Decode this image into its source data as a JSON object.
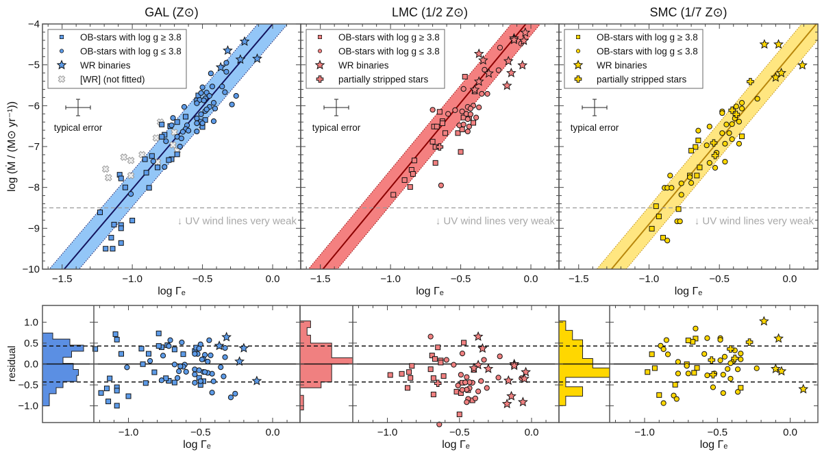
{
  "chart_data": {
    "type": "scatter",
    "ylabel": "log (Ṁ / (M⊙ yr⁻¹))",
    "xlabel": "log Γₑ",
    "residual_label": "residual",
    "typical_error_label": "typical error",
    "uv_limit": {
      "value": -8.5,
      "label": "↓ UV wind lines very weak"
    },
    "xlim": [
      -1.64,
      0.2
    ],
    "ylim": [
      -10,
      -4
    ],
    "xticks": [
      -1.5,
      -1.0,
      -0.5,
      0.0
    ],
    "xtick_labels": [
      "−1.5",
      "−1.0",
      "−0.5",
      "0.0"
    ],
    "yticks": [
      -4,
      -5,
      -6,
      -7,
      -8,
      -9,
      -10
    ],
    "ytick_labels": [
      "−4",
      "−5",
      "−6",
      "−7",
      "−8",
      "−9",
      "−10"
    ],
    "residual_ylim": [
      -1.4,
      1.4
    ],
    "residual_xlim": [
      -1.24,
      0.19
    ],
    "residual_xticks": [
      -1.0,
      -0.5,
      0.0
    ],
    "residual_xtick_labels": [
      "−1.0",
      "−0.5",
      "0.0"
    ],
    "residual_yticks": [
      1.0,
      0.5,
      0.0,
      -0.5,
      -1.0
    ],
    "residual_ytick_labels": [
      "1.0",
      "0.5",
      "0.0",
      "−0.5",
      "−1.0"
    ],
    "hist_xlim": [
      0,
      15
    ],
    "panels": [
      {
        "title": "GAL (Z⊙)",
        "colors": {
          "band": "#93c6f7",
          "line": "#14145e",
          "marker": "#5d9be8",
          "hist": "#5b8fe3"
        },
        "fit": {
          "slope": 4.04,
          "intercept": -4.0,
          "sigma": 0.43
        },
        "legend": [
          "OB-stars with log g ≥ 3.8",
          "OB-stars with log g ≤ 3.8",
          "WR binaries",
          "[WR] (not fitted)"
        ],
        "legend_markers": [
          "square",
          "circle",
          "star",
          "xcross"
        ],
        "series": {
          "square": [
            [
              -0.62,
              -6.27
            ],
            [
              -0.79,
              -6.46
            ],
            [
              -0.73,
              -6.5
            ],
            [
              -0.68,
              -6.4
            ],
            [
              -0.77,
              -6.71
            ],
            [
              -0.79,
              -6.76
            ],
            [
              -0.68,
              -7.19
            ],
            [
              -0.72,
              -7.31
            ],
            [
              -0.74,
              -7.33
            ],
            [
              -0.86,
              -7.23
            ],
            [
              -0.91,
              -7.31
            ],
            [
              -0.82,
              -7.51
            ],
            [
              -0.9,
              -7.64
            ],
            [
              -1.09,
              -7.69
            ],
            [
              -1.08,
              -7.78
            ],
            [
              -1.05,
              -8.0
            ],
            [
              -0.88,
              -8.01
            ],
            [
              -1.23,
              -8.61
            ],
            [
              -1.0,
              -8.81
            ],
            [
              -1.13,
              -8.91
            ],
            [
              -1.08,
              -8.92
            ],
            [
              -1.08,
              -9.0
            ],
            [
              -1.15,
              -9.23
            ],
            [
              -1.08,
              -9.36
            ],
            [
              -1.19,
              -9.5
            ],
            [
              -1.14,
              -9.5
            ],
            [
              -0.54,
              -5.87
            ],
            [
              -0.51,
              -6.39
            ],
            [
              -0.48,
              -6.35
            ],
            [
              -0.5,
              -6.52
            ],
            [
              -0.53,
              -5.75
            ]
          ],
          "circle": [
            [
              -0.44,
              -5.21
            ],
            [
              -0.33,
              -4.95
            ],
            [
              -0.33,
              -5.17
            ],
            [
              -0.5,
              -5.55
            ],
            [
              -0.43,
              -5.53
            ],
            [
              -0.36,
              -5.53
            ],
            [
              -0.34,
              -5.67
            ],
            [
              -0.26,
              -5.76
            ],
            [
              -0.29,
              -5.97
            ],
            [
              -0.51,
              -5.69
            ],
            [
              -0.47,
              -5.68
            ],
            [
              -0.45,
              -5.76
            ],
            [
              -0.48,
              -5.82
            ],
            [
              -0.52,
              -5.86
            ],
            [
              -0.49,
              -5.87
            ],
            [
              -0.42,
              -5.93
            ],
            [
              -0.45,
              -6.03
            ],
            [
              -0.41,
              -6.07
            ],
            [
              -0.48,
              -6.13
            ],
            [
              -0.47,
              -6.09
            ],
            [
              -0.54,
              -5.94
            ],
            [
              -0.54,
              -6.31
            ],
            [
              -0.54,
              -6.43
            ],
            [
              -0.5,
              -6.43
            ],
            [
              -0.54,
              -6.63
            ],
            [
              -0.42,
              -6.38
            ],
            [
              -0.51,
              -6.21
            ],
            [
              -0.63,
              -6.03
            ],
            [
              -0.71,
              -6.3
            ],
            [
              -0.72,
              -6.48
            ],
            [
              -0.61,
              -6.48
            ],
            [
              -0.62,
              -6.57
            ],
            [
              -0.6,
              -6.61
            ],
            [
              -0.64,
              -6.64
            ],
            [
              -0.68,
              -6.76
            ],
            [
              -0.65,
              -6.8
            ],
            [
              -0.76,
              -6.87
            ],
            [
              -0.66,
              -7.0
            ],
            [
              -0.85,
              -7.36
            ],
            [
              -0.77,
              -7.5
            ],
            [
              -1.01,
              -8.16
            ]
          ],
          "star": [
            [
              -0.2,
              -4.43
            ],
            [
              -0.32,
              -4.65
            ],
            [
              -0.23,
              -4.87
            ],
            [
              -0.11,
              -4.85
            ],
            [
              -0.37,
              -5.06
            ]
          ],
          "xcross": [
            [
              -0.8,
              -6.4
            ],
            [
              -0.83,
              -6.79
            ],
            [
              -0.7,
              -6.65
            ],
            [
              -0.71,
              -6.96
            ],
            [
              -0.68,
              -7.1
            ],
            [
              -0.93,
              -7.2
            ],
            [
              -1.06,
              -7.26
            ],
            [
              -1.01,
              -7.34
            ],
            [
              -0.82,
              -7.38
            ],
            [
              -1.01,
              -7.71
            ],
            [
              -1.19,
              -7.55
            ],
            [
              -1.17,
              -7.76
            ]
          ]
        },
        "hist": {
          "edges": [
            0.74,
            0.595,
            0.45,
            0.305,
            0.16,
            0.015,
            -0.13,
            -0.275,
            -0.42,
            -0.565,
            -0.71,
            -0.855,
            -1.0
          ],
          "counts": [
            3,
            8,
            12,
            8.5,
            6,
            9,
            10.5,
            10,
            6,
            4,
            2,
            2
          ]
        }
      },
      {
        "title": "LMC (1/2 Z⊙)",
        "colors": {
          "band": "#f48080",
          "line": "#8b0000",
          "marker": "#f08080",
          "hist": "#f08080"
        },
        "fit": {
          "slope": 4.15,
          "intercept": -3.85,
          "sigma": 0.43
        },
        "legend": [
          "OB-stars with log g ≥ 3.8",
          "OB-stars with log g ≤ 3.8",
          "WR binaries",
          "partially stripped stars"
        ],
        "legend_markers": [
          "square",
          "circle",
          "star",
          "plus"
        ],
        "series": {
          "square": [
            [
              -0.47,
              -5.29
            ],
            [
              -0.65,
              -6.15
            ],
            [
              -0.63,
              -6.38
            ],
            [
              -0.63,
              -6.43
            ],
            [
              -0.69,
              -6.51
            ],
            [
              -0.67,
              -6.51
            ],
            [
              -0.61,
              -6.67
            ],
            [
              -0.52,
              -6.67
            ],
            [
              -0.49,
              -6.58
            ],
            [
              -0.48,
              -6.29
            ],
            [
              -0.44,
              -6.3
            ],
            [
              -0.41,
              -6.42
            ],
            [
              -0.4,
              -5.65
            ],
            [
              -0.7,
              -6.88
            ],
            [
              -0.68,
              -7.01
            ],
            [
              -0.5,
              -7.13
            ],
            [
              -0.68,
              -7.4
            ],
            [
              -0.83,
              -7.34
            ],
            [
              -0.85,
              -7.57
            ],
            [
              -0.84,
              -7.67
            ],
            [
              -0.9,
              -7.82
            ],
            [
              -0.86,
              -7.99
            ],
            [
              -0.98,
              -8.18
            ]
          ],
          "circle": [
            [
              -0.22,
              -4.58
            ],
            [
              -0.07,
              -4.48
            ],
            [
              -0.33,
              -5.12
            ],
            [
              -0.23,
              -5.13
            ],
            [
              -0.48,
              -5.59
            ],
            [
              -0.35,
              -5.71
            ],
            [
              -0.31,
              -5.71
            ],
            [
              -0.45,
              -6.03
            ],
            [
              -0.41,
              -6.0
            ],
            [
              -0.37,
              -6.04
            ],
            [
              -0.43,
              -6.07
            ],
            [
              -0.7,
              -6.1
            ],
            [
              -0.59,
              -6.2
            ],
            [
              -0.54,
              -6.11
            ],
            [
              -0.49,
              -6.14
            ],
            [
              -0.46,
              -6.2
            ],
            [
              -0.43,
              -6.21
            ],
            [
              -0.45,
              -6.33
            ],
            [
              -0.39,
              -6.29
            ],
            [
              -0.51,
              -6.48
            ],
            [
              -0.48,
              -6.46
            ],
            [
              -0.44,
              -6.51
            ],
            [
              -0.45,
              -6.63
            ],
            [
              -0.64,
              -7.95
            ]
          ],
          "star": [
            [
              -0.04,
              -4.21
            ],
            [
              -0.12,
              -4.35
            ],
            [
              -0.12,
              -4.39
            ],
            [
              -0.05,
              -4.41
            ],
            [
              -0.37,
              -4.73
            ],
            [
              -0.34,
              -4.89
            ],
            [
              -0.16,
              -4.91
            ],
            [
              -0.06,
              -5.01
            ],
            [
              -0.3,
              -5.21
            ],
            [
              -0.14,
              -5.2
            ],
            [
              -0.37,
              -5.41
            ],
            [
              -0.4,
              -5.61
            ],
            [
              -0.17,
              -5.51
            ]
          ],
          "plus": [
            [
              -0.65,
              -7.01
            ]
          ]
        },
        "hist": {
          "edges": [
            1.03,
            0.87,
            0.69,
            0.5,
            0.15,
            0.0,
            -0.43,
            -0.57,
            -0.75,
            -1.1
          ],
          "counts": [
            3,
            2,
            3,
            9,
            15,
            9,
            6,
            0,
            1
          ]
        }
      },
      {
        "title": "SMC (1/7 Z⊙)",
        "colors": {
          "band": "#ffe680",
          "line": "#b8860b",
          "marker": "#ffd700",
          "hist": "#ffd700"
        },
        "fit": {
          "slope": 4.12,
          "intercept": -4.78,
          "sigma": 0.43
        },
        "legend": [
          "OB-stars with log g ≥ 3.8",
          "OB-stars with log g ≤ 3.8",
          "WR binaries",
          "partially stripped stars"
        ],
        "legend_markers": [
          "square",
          "circle",
          "star",
          "plus"
        ],
        "series": {
          "square": [
            [
              -0.34,
              -6.75
            ],
            [
              -0.65,
              -6.85
            ],
            [
              -0.67,
              -7.01
            ],
            [
              -0.7,
              -7.1
            ],
            [
              -0.64,
              -7.51
            ],
            [
              -0.66,
              -7.71
            ],
            [
              -0.71,
              -7.71
            ],
            [
              -0.95,
              -8.46
            ],
            [
              -0.79,
              -8.53
            ],
            [
              -0.93,
              -8.71
            ],
            [
              -0.98,
              -9.01
            ],
            [
              -0.9,
              -9.23
            ]
          ],
          "circle": [
            [
              -0.23,
              -5.83
            ],
            [
              -0.34,
              -5.93
            ],
            [
              -0.38,
              -6.02
            ],
            [
              -0.34,
              -6.07
            ],
            [
              -0.48,
              -6.14
            ],
            [
              -0.48,
              -6.18
            ],
            [
              -0.39,
              -6.31
            ],
            [
              -0.36,
              -6.39
            ],
            [
              -0.45,
              -6.46
            ],
            [
              -0.41,
              -6.45
            ],
            [
              -0.57,
              -6.51
            ],
            [
              -0.65,
              -6.61
            ],
            [
              -0.48,
              -6.67
            ],
            [
              -0.43,
              -6.67
            ],
            [
              -0.41,
              -6.82
            ],
            [
              -0.46,
              -6.93
            ],
            [
              -0.36,
              -6.93
            ],
            [
              -0.59,
              -6.97
            ],
            [
              -0.52,
              -7.15
            ],
            [
              -0.57,
              -7.4
            ],
            [
              -0.46,
              -7.37
            ],
            [
              -0.53,
              -7.52
            ],
            [
              -0.85,
              -7.71
            ],
            [
              -0.71,
              -7.75
            ],
            [
              -0.77,
              -7.9
            ],
            [
              -0.7,
              -7.89
            ],
            [
              -0.89,
              -8.01
            ],
            [
              -0.87,
              -8.01
            ],
            [
              -0.84,
              -8.01
            ],
            [
              -0.77,
              -8.18
            ],
            [
              -0.8,
              -8.83
            ],
            [
              -0.78,
              -8.83
            ],
            [
              -0.87,
              -9.3
            ]
          ],
          "star": [
            [
              -0.18,
              -4.5
            ],
            [
              -0.08,
              -4.5
            ],
            [
              0.09,
              -5.01
            ],
            [
              -0.1,
              -5.31
            ],
            [
              -0.06,
              -5.2
            ]
          ],
          "plus": [
            [
              -0.28,
              -5.41
            ],
            [
              -0.41,
              -6.11
            ],
            [
              -0.38,
              -6.21
            ],
            [
              -0.54,
              -6.91
            ],
            [
              -0.53,
              -7.22
            ]
          ]
        },
        "hist": {
          "edges": [
            1.03,
            0.805,
            0.58,
            0.355,
            0.13,
            -0.095,
            -0.32,
            -0.545,
            -0.77,
            -0.995
          ],
          "counts": [
            2,
            4,
            7,
            7,
            10,
            15,
            2,
            7,
            2
          ]
        }
      }
    ]
  }
}
